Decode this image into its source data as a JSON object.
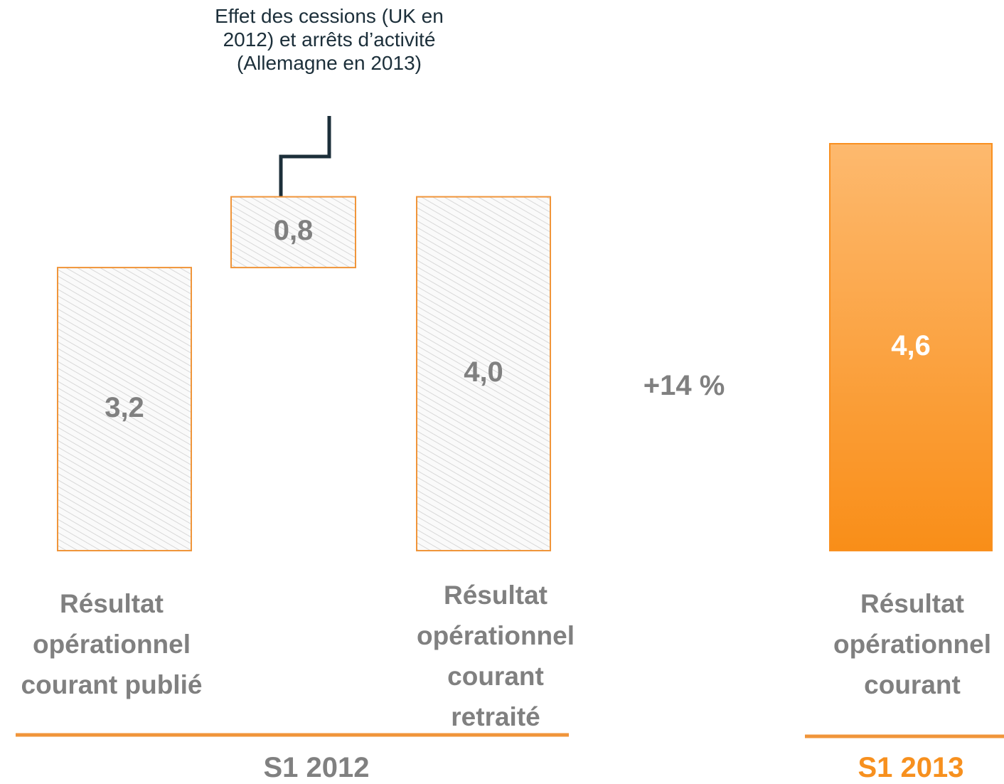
{
  "chart_data": {
    "type": "waterfall",
    "categories": [
      "Résultat opérationnel courant publié",
      null,
      "Résultat opérationnel courant retraité",
      "Résultat opérationnel courant"
    ],
    "values": [
      3.2,
      0.8,
      4.0,
      4.6
    ],
    "value_labels": [
      "3,2",
      "0,8",
      "4,0",
      "4,6"
    ],
    "colors": [
      "#f0953a",
      "#f0953a",
      "#f0953a",
      "#f99020"
    ],
    "annotation": "Effet des cessions (UK en 2012) et arrêts d’activité  (Allemagne en 2013)",
    "change_label": "+14 %",
    "groups": [
      {
        "label": "S1 2012",
        "color": "#808080"
      },
      {
        "label": "S1 2013",
        "color": "#f7901e"
      }
    ]
  }
}
